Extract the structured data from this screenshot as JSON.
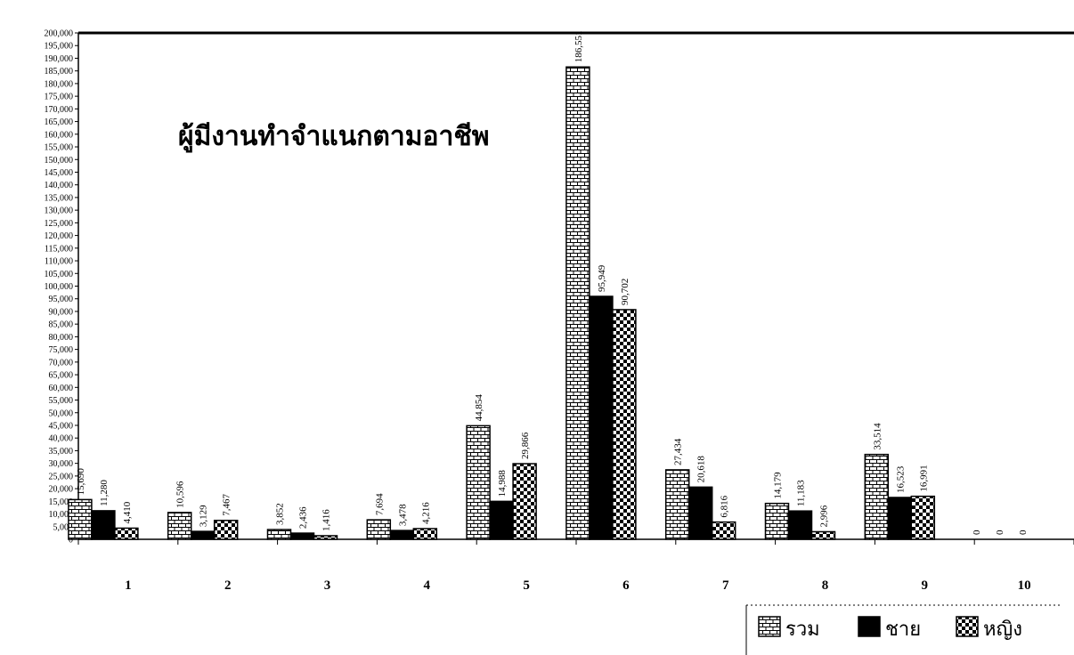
{
  "chart_data": {
    "type": "bar",
    "title": "ผู้มีงานทำจำแนกตามอาชีพ",
    "xlabel": "",
    "ylabel": "",
    "categories": [
      "1",
      "2",
      "3",
      "4",
      "5",
      "6",
      "7",
      "8",
      "9",
      "10"
    ],
    "ylim": [
      0,
      200000
    ],
    "ytick_step": 5000,
    "ytick_labels": [
      "0",
      "5,000",
      "10,000",
      "15,000",
      "20,000",
      "25,000",
      "30,000",
      "35,000",
      "40,000",
      "45,000",
      "50,000",
      "55,000",
      "60,000",
      "65,000",
      "70,000",
      "75,000",
      "80,000",
      "85,000",
      "90,000",
      "95,000",
      "100,000",
      "105,000",
      "110,000",
      "115,000",
      "120,000",
      "125,000",
      "130,000",
      "135,000",
      "140,000",
      "145,000",
      "150,000",
      "155,000",
      "160,000",
      "165,000",
      "170,000",
      "175,000",
      "180,000",
      "185,000",
      "190,000",
      "195,000",
      "200,000"
    ],
    "legend_position": "bottom-right",
    "series": [
      {
        "name": "รวม",
        "pattern": "brick",
        "values": [
          15690,
          10596,
          3852,
          7694,
          44854,
          186551,
          27434,
          14179,
          33514,
          0
        ],
        "labels": [
          "15,690",
          "10,596",
          "3,852",
          "7,694",
          "44,854",
          "186,551",
          "27,434",
          "14,179",
          "33,514",
          "0"
        ]
      },
      {
        "name": "ชาย",
        "pattern": "solid",
        "values": [
          11280,
          3129,
          2436,
          3478,
          14988,
          95949,
          20618,
          11183,
          16523,
          0
        ],
        "labels": [
          "11,280",
          "3,129",
          "2,436",
          "3,478",
          "14,988",
          "95,949",
          "20,618",
          "11,183",
          "16,523",
          "0"
        ]
      },
      {
        "name": "หญิง",
        "pattern": "checker",
        "values": [
          4410,
          7467,
          1416,
          4216,
          29866,
          90702,
          6816,
          2996,
          16991,
          0
        ],
        "labels": [
          "4,410",
          "7,467",
          "1,416",
          "4,216",
          "29,866",
          "90,702",
          "6,816",
          "2,996",
          "16,991",
          "0"
        ]
      }
    ]
  }
}
